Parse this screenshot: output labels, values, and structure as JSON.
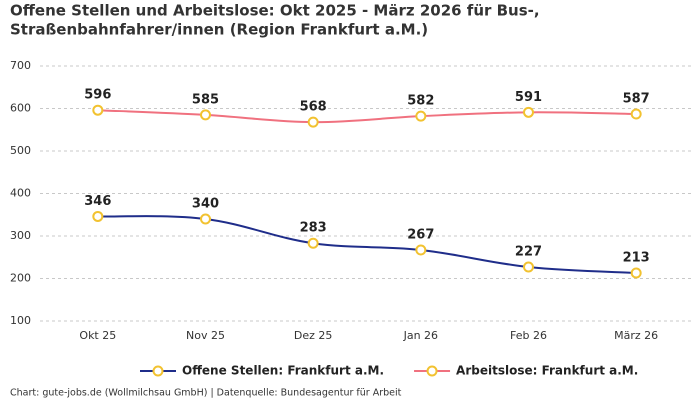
{
  "chart_data": {
    "type": "line",
    "title": [
      "Offene Stellen und Arbeitslose: Okt 2025 - März 2026 für Bus-,",
      "Straßenbahnfahrer/innen (Region Frankfurt a.M.)"
    ],
    "categories": [
      "Okt 25",
      "Nov 25",
      "Dez 25",
      "Jan 26",
      "Feb 26",
      "März 26"
    ],
    "series": [
      {
        "name": "Offene Stellen: Frankfurt a.M.",
        "color": "#1f2d8a",
        "values": [
          346,
          340,
          283,
          267,
          227,
          213
        ]
      },
      {
        "name": "Arbeitslose: Frankfurt a.M.",
        "color": "#f0717f",
        "values": [
          596,
          585,
          568,
          582,
          591,
          587
        ]
      }
    ],
    "marker_color": "#f2c230",
    "ylim": [
      100,
      700
    ],
    "yticks": [
      100,
      200,
      300,
      400,
      500,
      600,
      700
    ],
    "grid": true,
    "legend": "bottom",
    "source": "Chart: gute-jobs.de (Wollmilchsau GmbH) | Datenquelle: Bundesagentur für Arbeit"
  }
}
